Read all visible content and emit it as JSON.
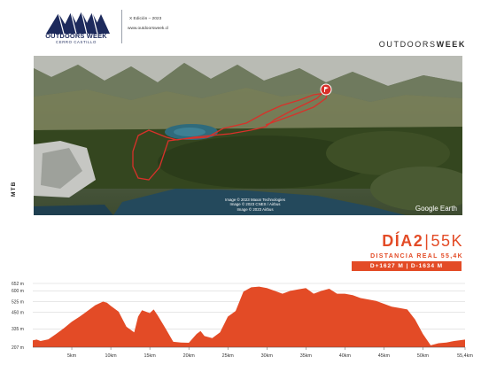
{
  "header": {
    "brand_name": "OUTDOORS WEEK",
    "brand_sub": "CERRO CASTILLO",
    "edition": "X Edición – 2023",
    "website": "www.outdoorsweek.cl",
    "brand_right_light": "OUTDOORS",
    "brand_right_bold": "WEEK"
  },
  "side_label": "MTB",
  "map": {
    "attribution": [
      "Image © 2023 Maxar Technologies",
      "Image © 2023 CNES / Airbus",
      "Image © 2023 Airbus"
    ],
    "provider": "Google Earth",
    "icon": "finish-flag-pin-icon"
  },
  "day": {
    "title_day": "DÍA2",
    "title_sep": "|",
    "title_distance": "55K",
    "real_distance": "DISTANCIA REAL 55,4K",
    "elevation_gain_loss": "D+1627 M | D-1634 M"
  },
  "colors": {
    "accent": "#e34b26",
    "route": "#d8312a",
    "navy": "#1d2a5c"
  },
  "chart_data": {
    "type": "area",
    "title": "",
    "xlabel": "",
    "ylabel": "",
    "y_ticks": [
      207,
      335,
      450,
      525,
      600,
      652
    ],
    "y_tick_labels": [
      "207 m",
      "335 m",
      "450 m",
      "525 m",
      "600 m",
      "652 m"
    ],
    "x_ticks": [
      5,
      10,
      15,
      20,
      25,
      30,
      35,
      40,
      45,
      50,
      55.4
    ],
    "x_tick_labels": [
      "5km",
      "10km",
      "15km",
      "20km",
      "25km",
      "30km",
      "35km",
      "40km",
      "45km",
      "50km",
      "55,4km"
    ],
    "xlim": [
      0,
      55.4
    ],
    "grid": "horizontal",
    "series": [
      {
        "x": [
          0,
          0.5,
          1,
          2,
          3,
          4,
          5,
          6,
          7,
          8,
          9,
          9.5,
          10,
          11,
          12,
          13,
          13.5,
          14,
          15,
          15.5,
          16,
          17,
          18,
          19,
          20,
          21,
          21.5,
          22,
          23,
          24,
          25,
          26,
          27,
          28,
          29,
          30,
          31,
          32,
          33,
          34,
          35,
          36,
          37,
          38,
          39,
          40,
          41,
          42,
          43,
          44,
          45,
          46,
          47,
          48,
          49,
          50,
          51,
          52,
          53,
          54,
          55.4
        ],
        "y": [
          255,
          260,
          250,
          262,
          300,
          340,
          385,
          420,
          460,
          500,
          525,
          518,
          495,
          455,
          350,
          310,
          420,
          465,
          445,
          470,
          430,
          340,
          245,
          240,
          238,
          300,
          320,
          285,
          270,
          310,
          420,
          460,
          595,
          625,
          630,
          620,
          600,
          580,
          600,
          610,
          620,
          580,
          600,
          615,
          580,
          580,
          570,
          550,
          540,
          530,
          510,
          490,
          480,
          470,
          400,
          300,
          220,
          235,
          240,
          250,
          260
        ]
      }
    ]
  }
}
